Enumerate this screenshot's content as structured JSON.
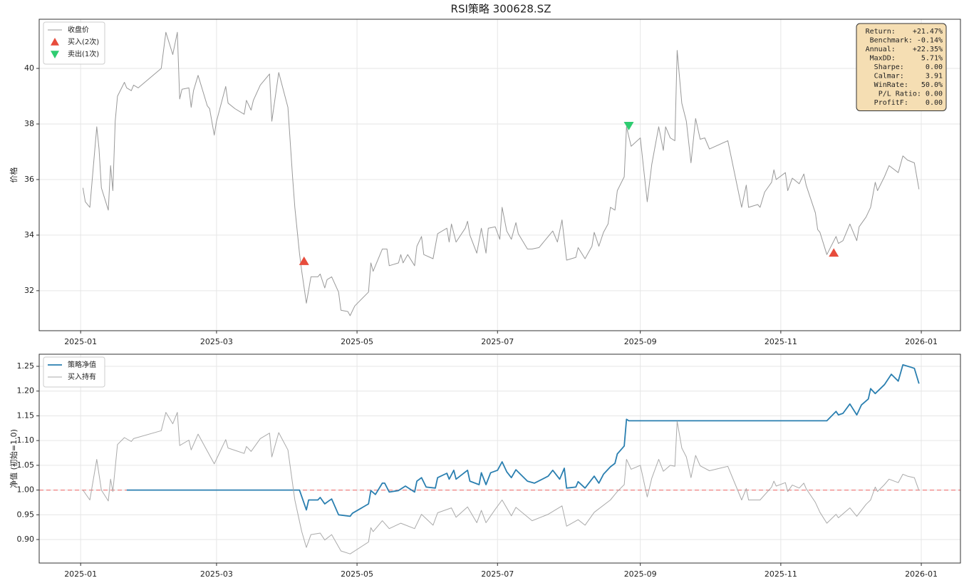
{
  "chart_data": [
    {
      "type": "line",
      "title": "RSI策略  300628.SZ",
      "ylabel": "价格",
      "xlim": [
        -18,
        382
      ],
      "ylim": [
        30.56,
        41.77
      ],
      "grid": true,
      "legend": "upper left",
      "xticks": [
        {
          "value": 0,
          "label": "2025-01"
        },
        {
          "value": 59,
          "label": "2025-03"
        },
        {
          "value": 120,
          "label": "2025-05"
        },
        {
          "value": 181,
          "label": "2025-07"
        },
        {
          "value": 243,
          "label": "2025-09"
        },
        {
          "value": 304,
          "label": "2025-11"
        },
        {
          "value": 365,
          "label": "2026-01"
        }
      ],
      "yticks": [
        32,
        34,
        36,
        38,
        40
      ],
      "series": [
        {
          "name": "收盘价",
          "color": "#999999",
          "kind": "line",
          "x": [
            1,
            2,
            4,
            7,
            8,
            9,
            12,
            13,
            14,
            15,
            16,
            19,
            20,
            22,
            23,
            25,
            35,
            37,
            40,
            42,
            43,
            44,
            47,
            48,
            49,
            51,
            55,
            56,
            58,
            59,
            63,
            64,
            67,
            71,
            72,
            74,
            75,
            78,
            82,
            83,
            86,
            90,
            92,
            93,
            95,
            96,
            98,
            100,
            103,
            104,
            106,
            107,
            109,
            112,
            113,
            116,
            117,
            119,
            125,
            126,
            127,
            131,
            133,
            134,
            138,
            139,
            140,
            142,
            145,
            146,
            148,
            149,
            153,
            155,
            159,
            160,
            161,
            163,
            167,
            168,
            169,
            172,
            174,
            176,
            177,
            180,
            182,
            183,
            185,
            187,
            189,
            190,
            194,
            196,
            199,
            203,
            205,
            207,
            209,
            211,
            215,
            216,
            219,
            222,
            223,
            225,
            227,
            229,
            230,
            232,
            233,
            236,
            237,
            239,
            243,
            246,
            248,
            251,
            253,
            254,
            256,
            258,
            259,
            261,
            263,
            265,
            267,
            269,
            271,
            273,
            281,
            285,
            287,
            289,
            290,
            294,
            295,
            297,
            300,
            301,
            302,
            306,
            307,
            309,
            312,
            314,
            315,
            319,
            320,
            321,
            324,
            328,
            329,
            331,
            334,
            337,
            338,
            341,
            343,
            345,
            346,
            349,
            351,
            355,
            357,
            359,
            362,
            364
          ],
          "values": [
            35.7,
            35.2,
            35.0,
            37.9,
            37.1,
            35.7,
            34.9,
            36.5,
            35.6,
            38.1,
            39.0,
            39.5,
            39.3,
            39.2,
            39.4,
            39.3,
            40.0,
            41.3,
            40.5,
            41.3,
            38.9,
            39.25,
            39.3,
            38.6,
            39.2,
            39.75,
            38.65,
            38.55,
            37.6,
            38.1,
            39.35,
            38.75,
            38.55,
            38.35,
            38.85,
            38.5,
            38.85,
            39.4,
            39.8,
            38.1,
            39.85,
            38.6,
            36.1,
            35.0,
            33.35,
            32.7,
            31.55,
            32.5,
            32.5,
            32.6,
            32.1,
            32.4,
            32.5,
            31.95,
            31.3,
            31.25,
            31.1,
            31.45,
            31.95,
            33.0,
            32.7,
            33.5,
            33.5,
            32.9,
            33.0,
            33.3,
            33.0,
            33.3,
            32.9,
            33.6,
            33.95,
            33.3,
            33.15,
            34.05,
            34.25,
            33.75,
            34.4,
            33.75,
            34.25,
            34.5,
            34.0,
            33.35,
            34.25,
            33.35,
            34.25,
            34.3,
            33.85,
            35.0,
            34.15,
            33.85,
            34.45,
            34.05,
            33.5,
            33.5,
            33.55,
            33.95,
            34.15,
            33.75,
            34.55,
            33.1,
            33.2,
            33.55,
            33.15,
            33.6,
            34.1,
            33.6,
            34.1,
            34.4,
            35.0,
            34.9,
            35.6,
            36.1,
            37.9,
            37.2,
            37.5,
            35.2,
            36.55,
            37.9,
            37.05,
            37.9,
            37.5,
            37.4,
            40.65,
            38.75,
            38.1,
            36.6,
            38.2,
            37.45,
            37.5,
            37.1,
            37.4,
            35.8,
            35.0,
            35.8,
            35.0,
            35.1,
            35.0,
            35.55,
            35.9,
            36.35,
            36.0,
            36.25,
            35.6,
            36.05,
            35.85,
            36.2,
            35.8,
            34.8,
            34.2,
            34.1,
            33.3,
            33.95,
            33.7,
            33.8,
            34.4,
            33.8,
            34.3,
            34.65,
            35.0,
            35.9,
            35.6,
            36.1,
            36.5,
            36.25,
            36.85,
            36.7,
            36.6,
            35.65
          ]
        },
        {
          "name": "买入(2次)",
          "color": "#e74c3c",
          "kind": "marker",
          "marker": "up",
          "x": [
            97,
            327
          ],
          "values": [
            33.05,
            33.35
          ]
        },
        {
          "name": "卖出(1次)",
          "color": "#2ecc71",
          "kind": "marker",
          "marker": "down",
          "x": [
            238
          ],
          "values": [
            37.95
          ]
        }
      ],
      "stats": [
        "Return:    +21.47%",
        " Benchmark: -0.14%",
        "Annual:    +22.35%",
        "MaxDD:      5.71%",
        "Sharpe:     0.00",
        "Calmar:     3.91",
        "WinRate:   50.0%",
        "P/L Ratio: 0.00",
        "ProfitF:    0.00"
      ],
      "stats_color": "#f5deb3"
    },
    {
      "type": "line",
      "ylabel": "净值 (初始=1.0)",
      "xlim": [
        -18,
        382
      ],
      "ylim": [
        0.8525,
        1.2745
      ],
      "grid": true,
      "legend": "upper left",
      "xticks": [
        {
          "value": 0,
          "label": "2025-01"
        },
        {
          "value": 59,
          "label": "2025-03"
        },
        {
          "value": 120,
          "label": "2025-05"
        },
        {
          "value": 181,
          "label": "2025-07"
        },
        {
          "value": 243,
          "label": "2025-09"
        },
        {
          "value": 304,
          "label": "2025-11"
        },
        {
          "value": 365,
          "label": "2026-01"
        }
      ],
      "yticks": [
        {
          "value": 0.9,
          "label": "0.90"
        },
        0.95,
        {
          "value": 1,
          "label": "1.00"
        },
        1.05,
        {
          "value": 1.1,
          "label": "1.10"
        },
        1.15,
        {
          "value": 1.2,
          "label": "1.20"
        },
        1.25
      ],
      "reference_line": {
        "value": 1,
        "color": "#f08080"
      },
      "series": [
        {
          "name": "策略净值",
          "color": "#2a7fb0",
          "kind": "line",
          "width": 1.8,
          "x": [
            20,
            95,
            98,
            99,
            103,
            104,
            106,
            108,
            109,
            112,
            117,
            118,
            125,
            126,
            128,
            131,
            132,
            134,
            138,
            141,
            145,
            146,
            148,
            150,
            154,
            155,
            159,
            160,
            162,
            163,
            168,
            169,
            173,
            174,
            176,
            178,
            181,
            183,
            185,
            187,
            189,
            194,
            197,
            203,
            205,
            208,
            210,
            211,
            215,
            216,
            219,
            223,
            225,
            227,
            230,
            232,
            233,
            236,
            237,
            238,
            324,
            328,
            329,
            331,
            334,
            337,
            339,
            342,
            343,
            345,
            349,
            352,
            355,
            357,
            360,
            362,
            364
          ],
          "values": [
            1.0,
            1.0,
            0.96,
            0.98,
            0.98,
            0.985,
            0.972,
            0.979,
            0.982,
            0.95,
            0.947,
            0.953,
            0.972,
            0.999,
            0.991,
            1.014,
            1.014,
            0.996,
            0.999,
            1.008,
            0.996,
            1.018,
            1.025,
            1.006,
            1.004,
            1.025,
            1.034,
            1.022,
            1.04,
            1.022,
            1.04,
            1.018,
            1.011,
            1.035,
            1.011,
            1.035,
            1.04,
            1.057,
            1.037,
            1.025,
            1.041,
            1.018,
            1.014,
            1.028,
            1.04,
            1.022,
            1.044,
            1.004,
            1.006,
            1.017,
            1.004,
            1.028,
            1.014,
            1.032,
            1.047,
            1.054,
            1.073,
            1.089,
            1.143,
            1.14,
            1.14,
            1.159,
            1.152,
            1.155,
            1.174,
            1.152,
            1.172,
            1.184,
            1.205,
            1.195,
            1.213,
            1.234,
            1.22,
            1.253,
            1.249,
            1.246,
            1.215
          ]
        },
        {
          "name": "买入持有",
          "color": "#aaaaaa",
          "kind": "line",
          "width": 1,
          "x": [
            1,
            4,
            7,
            9,
            12,
            13,
            14,
            16,
            19,
            22,
            23,
            35,
            37,
            40,
            42,
            43,
            47,
            48,
            51,
            58,
            63,
            64,
            71,
            72,
            74,
            78,
            82,
            83,
            86,
            90,
            93,
            96,
            98,
            100,
            104,
            106,
            109,
            113,
            117,
            125,
            126,
            127,
            131,
            134,
            139,
            145,
            148,
            153,
            155,
            161,
            163,
            168,
            172,
            174,
            176,
            180,
            183,
            187,
            189,
            196,
            203,
            209,
            211,
            216,
            219,
            223,
            230,
            233,
            236,
            237,
            239,
            243,
            246,
            248,
            251,
            253,
            256,
            258,
            259,
            261,
            263,
            265,
            267,
            269,
            273,
            281,
            285,
            287,
            289,
            290,
            295,
            300,
            301,
            302,
            306,
            307,
            309,
            312,
            314,
            315,
            319,
            321,
            324,
            328,
            329,
            334,
            337,
            341,
            343,
            345,
            346,
            349,
            351,
            355,
            357,
            359,
            362,
            364
          ],
          "values": [
            1.0,
            0.98,
            1.062,
            1.0,
            0.978,
            1.022,
            0.997,
            1.092,
            1.106,
            1.098,
            1.104,
            1.12,
            1.157,
            1.134,
            1.157,
            1.09,
            1.101,
            1.081,
            1.113,
            1.053,
            1.102,
            1.085,
            1.074,
            1.088,
            1.078,
            1.104,
            1.115,
            1.067,
            1.116,
            1.081,
            0.98,
            0.916,
            0.884,
            0.91,
            0.913,
            0.899,
            0.91,
            0.877,
            0.871,
            0.895,
            0.924,
            0.916,
            0.938,
            0.922,
            0.933,
            0.922,
            0.951,
            0.929,
            0.954,
            0.964,
            0.945,
            0.966,
            0.934,
            0.959,
            0.934,
            0.961,
            0.98,
            0.948,
            0.965,
            0.938,
            0.951,
            0.968,
            0.927,
            0.94,
            0.929,
            0.955,
            0.98,
            0.997,
            1.011,
            1.062,
            1.042,
            1.05,
            0.986,
            1.024,
            1.062,
            1.038,
            1.05,
            1.048,
            1.139,
            1.085,
            1.067,
            1.025,
            1.07,
            1.049,
            1.039,
            1.048,
            1.003,
            0.98,
            1.003,
            0.98,
            0.98,
            1.006,
            1.018,
            1.008,
            1.015,
            0.997,
            1.01,
            1.004,
            1.014,
            1.003,
            0.975,
            0.955,
            0.933,
            0.951,
            0.944,
            0.964,
            0.947,
            0.971,
            0.98,
            1.006,
            0.997,
            1.011,
            1.022,
            1.015,
            1.032,
            1.028,
            1.025,
            0.999
          ]
        }
      ]
    }
  ]
}
